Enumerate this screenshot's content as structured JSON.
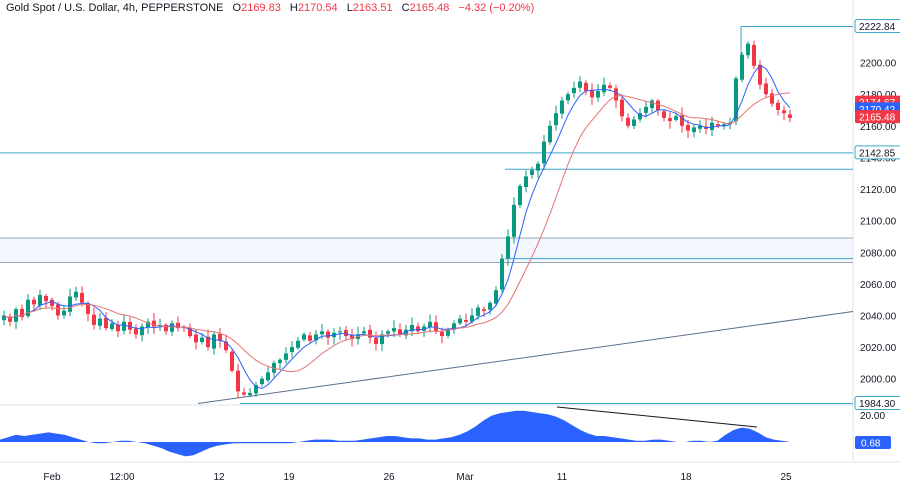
{
  "header": {
    "symbol": "Gold Spot / U.S. Dollar, 4h, PEPPERSTONE",
    "open_label": "O",
    "open": "2169.83",
    "high_label": "H",
    "high": "2170.54",
    "low_label": "L",
    "low": "2163.51",
    "close_label": "C",
    "close": "2165.48",
    "change": "−4.32 (−0.20%)"
  },
  "chart_data": [
    {
      "type": "candlestick",
      "ylim": [
        1984,
        2232
      ],
      "y_ticks": [
        2000,
        2020,
        2040,
        2060,
        2080,
        2100,
        2120,
        2140,
        2160,
        2180,
        2200
      ],
      "x_ticks": [
        "Feb",
        "12:00",
        "12",
        "19",
        "26",
        "Mar",
        "11",
        "18",
        "25"
      ],
      "horizontal_levels": [
        2222.84,
        2142.85,
        2132.5,
        2089,
        2076,
        2073.5,
        1984.3
      ],
      "level_labels": [
        "2222.84",
        "2142.85",
        "1984.30"
      ],
      "trendline": {
        "from": [
          "12",
          1984.3
        ],
        "to": [
          "25+",
          2043
        ]
      },
      "price_labels": [
        {
          "text": "2174.67",
          "color": "#f23645"
        },
        {
          "text": "2170.42",
          "color": "#2962ff"
        },
        {
          "text": "2165.48",
          "color": "#f23645"
        }
      ],
      "ohlc_path": [
        2040,
        2036,
        2044,
        2039,
        2050,
        2047,
        2053,
        2049,
        2046,
        2040,
        2043,
        2052,
        2055,
        2048,
        2041,
        2034,
        2038,
        2032,
        2035,
        2030,
        2036,
        2031,
        2028,
        2033,
        2036,
        2033,
        2034,
        2030,
        2035,
        2032,
        2032,
        2027,
        2023,
        2026,
        2020,
        2028,
        2024,
        2018,
        2005,
        1992,
        1990,
        1991,
        1996,
        2000,
        2004,
        2010,
        2012,
        2016,
        2020,
        2024,
        2028,
        2024,
        2028,
        2030,
        2026,
        2029,
        2030,
        2027,
        2025,
        2028,
        2030,
        2026,
        2022,
        2028,
        2030,
        2032,
        2028,
        2031,
        2034,
        2030,
        2033,
        2036,
        2030,
        2027,
        2031,
        2035,
        2038,
        2036,
        2040,
        2045,
        2043,
        2048,
        2056,
        2076,
        2090,
        2110,
        2122,
        2128,
        2132,
        2136,
        2150,
        2160,
        2168,
        2176,
        2180,
        2184,
        2188,
        2182,
        2178,
        2182,
        2186,
        2184,
        2176,
        2166,
        2160,
        2164,
        2168,
        2172,
        2176,
        2170,
        2165,
        2163,
        2166,
        2160,
        2157,
        2159,
        2160,
        2158,
        2162,
        2160,
        2161,
        2162,
        2190,
        2205,
        2212,
        2198,
        2186,
        2180,
        2174,
        2170,
        2168,
        2165
      ],
      "oscillator": {
        "name": "",
        "y_ticks": [
          20.0
        ],
        "value": "0.68",
        "values": [
          2,
          4,
          6,
          5,
          6,
          7,
          8,
          7,
          6,
          4,
          2,
          0,
          -1,
          -1,
          0,
          1,
          1,
          0,
          -1,
          -3,
          -5,
          -8,
          -10,
          -12,
          -11,
          -8,
          -5,
          -3,
          -2,
          -1,
          -1,
          -1,
          -1,
          -1,
          -1,
          -1,
          -1,
          0,
          1,
          2,
          2,
          2,
          1,
          1,
          1,
          2,
          3,
          4,
          5,
          5,
          4,
          3,
          3,
          2,
          2,
          3,
          4,
          6,
          9,
          13,
          18,
          22,
          24,
          25,
          26,
          26,
          25,
          24,
          23,
          21,
          18,
          14,
          10,
          7,
          5,
          5,
          4,
          3,
          2,
          1,
          1,
          2,
          2,
          1,
          0,
          0,
          1,
          1,
          0,
          1,
          6,
          10,
          12,
          11,
          8,
          4,
          2,
          1,
          0
        ]
      }
    }
  ],
  "axis_colors": {
    "up": "#089981",
    "down": "#f23645",
    "ma_fast": "#2962ff",
    "ma_slow": "#e57373",
    "osc": "#2962ff",
    "level": "#3fa7c9",
    "trend": "#5a6f8f"
  }
}
